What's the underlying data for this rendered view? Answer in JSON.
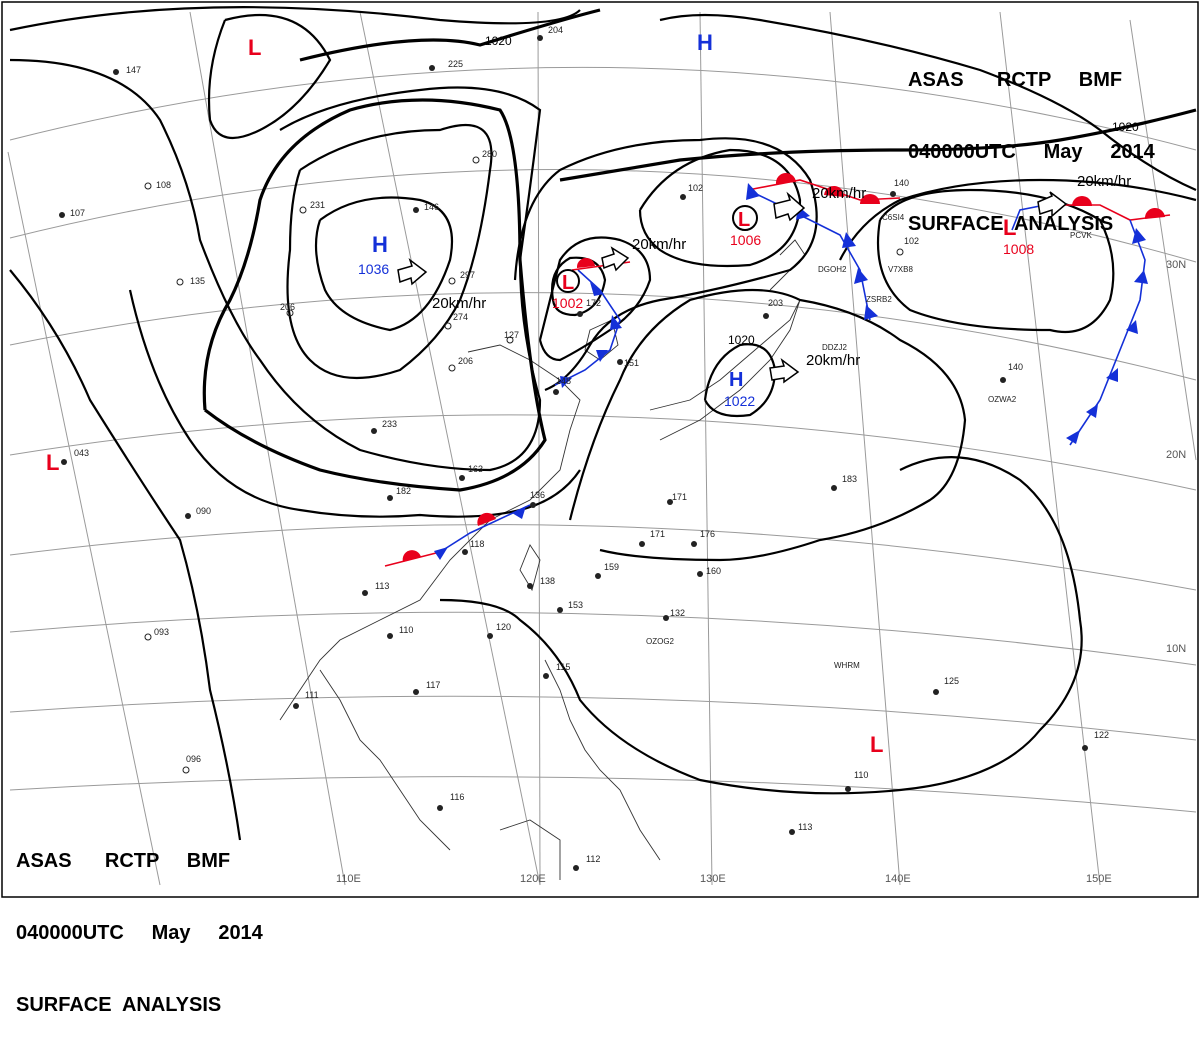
{
  "header": {
    "line1": "ASAS      RCTP     BMF",
    "line2": "040000UTC     May     2014",
    "line3": "SURFACE  ANALYSIS"
  },
  "colors": {
    "low": "#e8001c",
    "high": "#1430d8",
    "warm_front": "#e8001c",
    "cold_front": "#1430d8",
    "isobar": "#000000",
    "grid": "#9a9a9a"
  },
  "grid_labels": {
    "lon": [
      "110E",
      "120E",
      "130E",
      "140E",
      "150E"
    ],
    "lat": [
      "30N",
      "20N",
      "10N"
    ]
  },
  "isobar_labels": [
    "1020",
    "1020",
    "1020"
  ],
  "pressure_centers": [
    {
      "type": "L",
      "value": ""
    },
    {
      "type": "H",
      "value": ""
    },
    {
      "type": "H",
      "value": "1036"
    },
    {
      "type": "L",
      "value": "1002"
    },
    {
      "type": "L",
      "value": "1006"
    },
    {
      "type": "L",
      "value": "1008"
    },
    {
      "type": "H",
      "value": "1022"
    },
    {
      "type": "L",
      "value": ""
    },
    {
      "type": "L",
      "value": ""
    }
  ],
  "motion_labels": [
    "20km/hr",
    "20km/hr",
    "20km/hr",
    "20km/hr",
    "20km/hr"
  ],
  "station_numbers": [
    "225",
    "280",
    "206",
    "204",
    "231",
    "147",
    "108",
    "107",
    "135",
    "146",
    "297",
    "206",
    "274",
    "233",
    "163",
    "182",
    "136",
    "118",
    "113",
    "110",
    "120",
    "117",
    "111",
    "096",
    "116",
    "112",
    "115",
    "138",
    "153",
    "159",
    "171",
    "171",
    "176",
    "160",
    "132",
    "125",
    "122",
    "110",
    "113",
    "183",
    "140",
    "140",
    "102",
    "102",
    "043",
    "090",
    "093",
    "203",
    "172",
    "151",
    "127",
    "148"
  ],
  "ship_ids": [
    "DGOH2",
    "C6SI4",
    "V7XB8",
    "ZSRB2",
    "DDZJ2",
    "OZWA2",
    "PCVK",
    "WHRM",
    "OZOG2"
  ]
}
